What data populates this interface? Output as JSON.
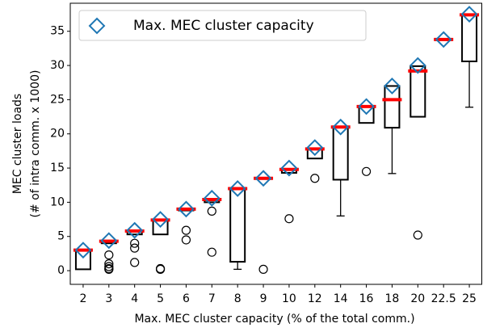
{
  "chart_data": {
    "type": "box",
    "xlabel": "Max. MEC cluster capacity (% of the total comm.)",
    "ylabel": [
      "MEC cluster loads",
      "(# of intra comm. x 1000)"
    ],
    "categories": [
      "2",
      "3",
      "4",
      "5",
      "6",
      "7",
      "8",
      "9",
      "10",
      "12",
      "14",
      "16",
      "18",
      "20",
      "22.5",
      "25"
    ],
    "ylim": [
      -2,
      39.1
    ],
    "yticks": [
      0,
      5,
      10,
      15,
      20,
      25,
      30,
      35
    ],
    "box_color": "#000000",
    "median_color": "#ff0000",
    "capacity": {
      "name": "Max. MEC cluster capacity",
      "color": "#1f77b4",
      "values": [
        3,
        4.4,
        5.9,
        7.5,
        9,
        10.6,
        12,
        13.5,
        15,
        18,
        21,
        24,
        27,
        30,
        33.8,
        37.5
      ]
    },
    "legend": "upper left",
    "boxes": [
      {
        "min": 0.2,
        "q1": 0.2,
        "median": 3,
        "q3": 3,
        "max": 3,
        "outliers": []
      },
      {
        "min": 4,
        "q1": 4,
        "median": 4.3,
        "q3": 4.4,
        "max": 4.4,
        "outliers": [
          2.3,
          1,
          0.6,
          0.3,
          0.2
        ]
      },
      {
        "min": 5.3,
        "q1": 5.3,
        "median": 5.8,
        "q3": 5.9,
        "max": 5.9,
        "outliers": [
          4,
          3.3,
          1.2
        ]
      },
      {
        "min": 5.3,
        "q1": 5.3,
        "median": 7.4,
        "q3": 7.4,
        "max": 7.4,
        "outliers": [
          0.3,
          0.2
        ]
      },
      {
        "min": 8.8,
        "q1": 8.8,
        "median": 9,
        "q3": 9,
        "max": 9,
        "outliers": [
          5.9,
          4.5
        ]
      },
      {
        "min": 10,
        "q1": 10,
        "median": 10.4,
        "q3": 10.5,
        "max": 10.5,
        "outliers": [
          8.7,
          2.7
        ]
      },
      {
        "min": 0.2,
        "q1": 1.3,
        "median": 12,
        "q3": 12,
        "max": 12,
        "outliers": []
      },
      {
        "min": 13.4,
        "q1": 13.4,
        "median": 13.5,
        "q3": 13.5,
        "max": 13.5,
        "outliers": [
          0.2
        ]
      },
      {
        "min": 14.3,
        "q1": 14.3,
        "median": 14.8,
        "q3": 14.8,
        "max": 14.8,
        "outliers": [
          7.6
        ]
      },
      {
        "min": 16.4,
        "q1": 16.4,
        "median": 17.8,
        "q3": 17.8,
        "max": 17.8,
        "outliers": [
          13.5
        ]
      },
      {
        "min": 8,
        "q1": 13.3,
        "median": 21,
        "q3": 21,
        "max": 21,
        "outliers": []
      },
      {
        "min": 21.6,
        "q1": 21.6,
        "median": 24,
        "q3": 24,
        "max": 24,
        "outliers": [
          14.5
        ]
      },
      {
        "min": 14.2,
        "q1": 20.9,
        "median": 25,
        "q3": 27,
        "max": 27,
        "outliers": []
      },
      {
        "min": 22.5,
        "q1": 22.5,
        "median": 29.2,
        "q3": 29.9,
        "max": 29.9,
        "outliers": [
          5.2
        ]
      },
      {
        "min": 33.7,
        "q1": 33.7,
        "median": 33.8,
        "q3": 33.8,
        "max": 33.8,
        "outliers": []
      },
      {
        "min": 23.9,
        "q1": 30.6,
        "median": 37.4,
        "q3": 37.4,
        "max": 37.4,
        "outliers": []
      }
    ]
  }
}
